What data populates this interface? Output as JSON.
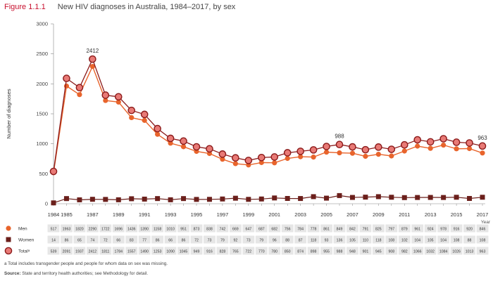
{
  "figure": {
    "number": "Figure 1.1.1",
    "title": "New HIV diagnoses in Australia, 1984–2017, by sex",
    "footnote": "a  Total includes transgender people and people for whom data on sex was missing.",
    "source_label": "Source:",
    "source_text": "State and territory health authorities; see Methodology for detail."
  },
  "colors": {
    "men": "#e8642c",
    "women": "#6b1f1b",
    "total_fill": "#e87a76",
    "total_stroke": "#8b1a1a",
    "table_stripe": "#e6e6e6"
  },
  "chart_data": {
    "type": "line",
    "ylabel": "Number of diagnoses",
    "xlabel": "Year",
    "ylim": [
      0,
      3000
    ],
    "yticks": [
      0,
      500,
      1000,
      1500,
      2000,
      2500,
      3000
    ],
    "x_tick_labels": [
      "1984",
      "1985",
      "1987",
      "1989",
      "1991",
      "1993",
      "1995",
      "1997",
      "1999",
      "2001",
      "2003",
      "2005",
      "2007",
      "2009",
      "2011",
      "2013",
      "2015",
      "2017"
    ],
    "x": [
      1984,
      1985,
      1986,
      1987,
      1988,
      1989,
      1990,
      1991,
      1992,
      1993,
      1994,
      1995,
      1996,
      1997,
      1998,
      1999,
      2000,
      2001,
      2002,
      2003,
      2004,
      2005,
      2006,
      2007,
      2008,
      2009,
      2010,
      2011,
      2012,
      2013,
      2014,
      2015,
      2016,
      2017
    ],
    "annotations": [
      {
        "x": 1987,
        "text": "2412"
      },
      {
        "x": 2006,
        "text": "988"
      },
      {
        "x": 2017,
        "text": "963"
      }
    ],
    "series": [
      {
        "name": "Men",
        "key": "men",
        "values": [
          517,
          1963,
          1820,
          2290,
          1722,
          1696,
          1436,
          1390,
          1158,
          1010,
          951,
          873,
          838,
          742,
          669,
          647,
          687,
          682,
          756,
          784,
          778,
          861,
          849,
          842,
          791,
          825,
          797,
          879,
          961,
          924,
          978,
          916,
          920,
          846
        ]
      },
      {
        "name": "Women",
        "key": "women",
        "values": [
          14,
          86,
          65,
          74,
          72,
          66,
          83,
          77,
          86,
          66,
          86,
          72,
          73,
          79,
          92,
          73,
          79,
          96,
          88,
          87,
          118,
          93,
          136,
          105,
          110,
          118,
          108,
          102,
          104,
          105,
          104,
          108,
          88,
          108
        ]
      },
      {
        "name": "Totalᵃ",
        "key": "total",
        "values": [
          539,
          2091,
          1937,
          2412,
          1811,
          1784,
          1557,
          1490,
          1253,
          1090,
          1045,
          949,
          916,
          828,
          765,
          722,
          770,
          780,
          850,
          874,
          898,
          955,
          988,
          948,
          901,
          945,
          908,
          982,
          1066,
          1032,
          1084,
          1026,
          1013,
          963
        ]
      }
    ]
  }
}
